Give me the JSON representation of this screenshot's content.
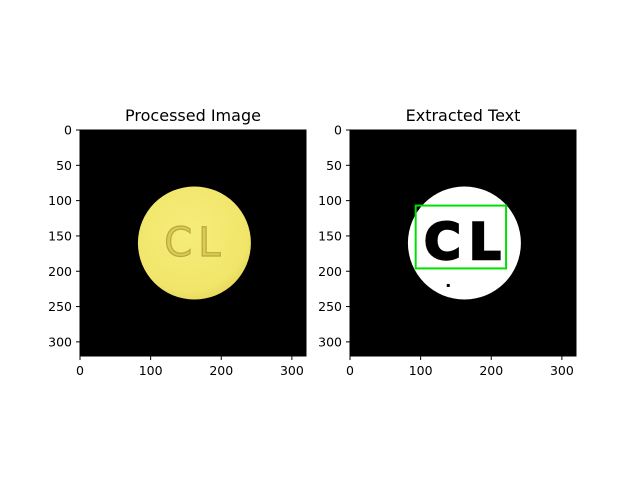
{
  "chart_data": [
    {
      "type": "image",
      "title": "Processed Image",
      "xlim": [
        0,
        320
      ],
      "ylim": [
        0,
        320
      ],
      "y_inverted": true,
      "xticks": [
        0,
        100,
        200,
        300
      ],
      "yticks": [
        0,
        50,
        100,
        150,
        200,
        250,
        300
      ],
      "background_color": "#000000",
      "pill": {
        "center": [
          162,
          160
        ],
        "radius": 80,
        "color": "#f1e66a",
        "imprint": "CL"
      }
    },
    {
      "type": "image",
      "title": "Extracted Text",
      "xlim": [
        0,
        320
      ],
      "ylim": [
        0,
        320
      ],
      "y_inverted": true,
      "xticks": [
        0,
        100,
        200,
        300
      ],
      "yticks": [
        0,
        50,
        100,
        150,
        200,
        250,
        300
      ],
      "background_color": "#000000",
      "pill": {
        "center": [
          162,
          160
        ],
        "radius": 80,
        "color": "#ffffff",
        "imprint": "CL"
      },
      "detection_box": {
        "x0": 93,
        "y0": 107,
        "x1": 221,
        "y1": 196,
        "color": "#00e000"
      }
    }
  ]
}
